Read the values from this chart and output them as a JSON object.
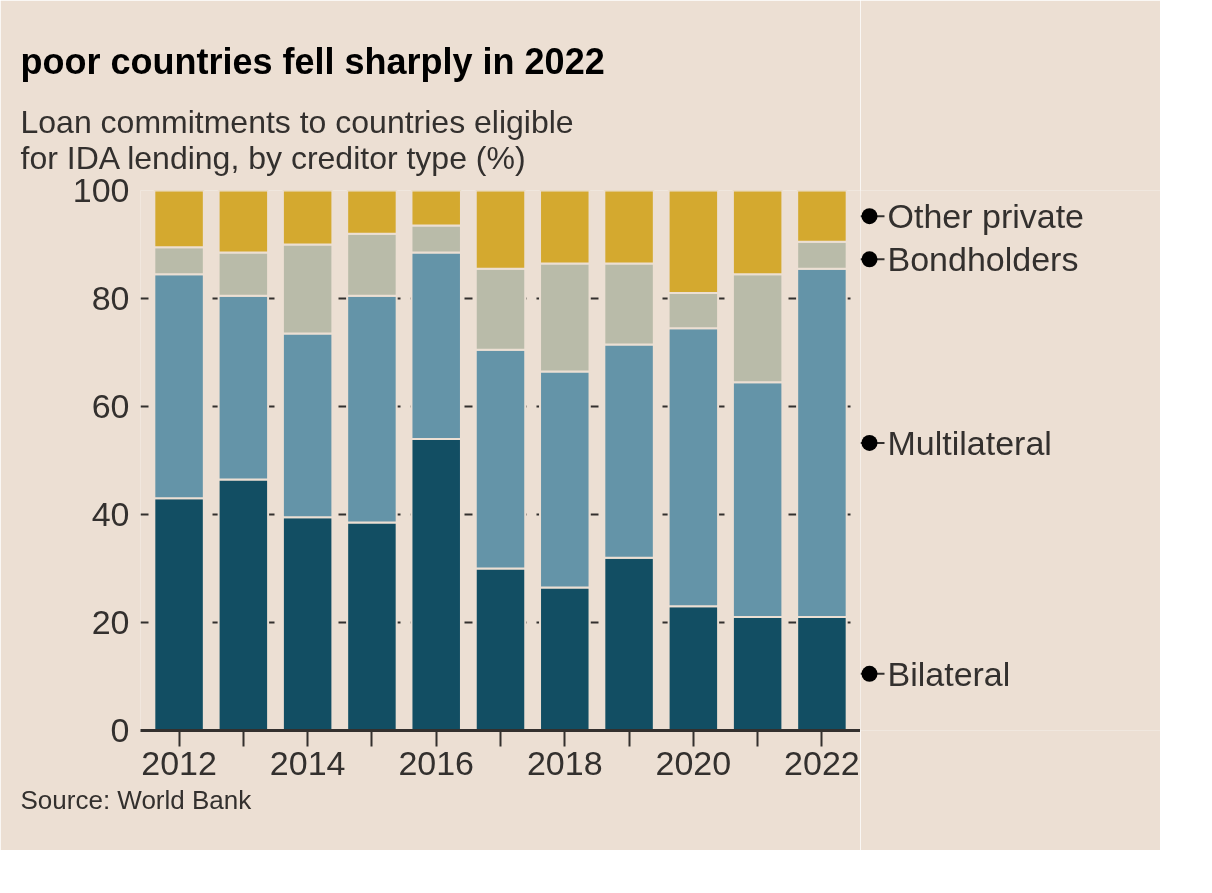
{
  "chart_data": {
    "type": "bar",
    "stacked": true,
    "title": "poor countries fell sharply in 2022",
    "subtitle": "Loan commitments to countries eligible for IDA lending, by creditor type (%)",
    "annotations": [
      "Source: World Bank"
    ],
    "x": [
      2012,
      2013,
      2014,
      2015,
      2016,
      2017,
      2018,
      2019,
      2020,
      2021,
      2022
    ],
    "xlim": [
      2011.4,
      2022.6
    ],
    "xticks": [
      2012,
      {
        "value": 2013,
        "label": null
      },
      2014,
      {
        "value": 2015,
        "label": null
      },
      2016,
      {
        "value": 2017,
        "label": null
      },
      2018,
      {
        "value": 2019,
        "label": null
      },
      2020,
      {
        "value": 2021,
        "label": null
      },
      2022
    ],
    "ylim": [
      0,
      100
    ],
    "yticks": [
      0,
      20,
      40,
      60,
      80,
      100
    ],
    "grid": "y",
    "legend": "right",
    "series": [
      {
        "name": "Bilateral",
        "color": "#124e63",
        "values": [
          43,
          46.5,
          39.5,
          38.5,
          54,
          30,
          26.5,
          32,
          23,
          21,
          21
        ]
      },
      {
        "name": "Multilateral",
        "color": "#6494a8",
        "values": [
          41.5,
          34,
          34,
          42,
          34.5,
          40.5,
          40,
          39.5,
          51.5,
          43.5,
          64.5
        ]
      },
      {
        "name": "Bondholders",
        "color": "#b9bba9",
        "values": [
          5,
          8,
          16.5,
          11.5,
          5,
          15,
          20,
          15,
          6.5,
          20,
          5
        ]
      },
      {
        "name": "Other private",
        "color": "#d4a92f",
        "values": [
          10.5,
          11.5,
          10,
          8,
          6.5,
          14.5,
          13.5,
          13.5,
          19,
          15.5,
          9.5
        ]
      }
    ]
  }
}
